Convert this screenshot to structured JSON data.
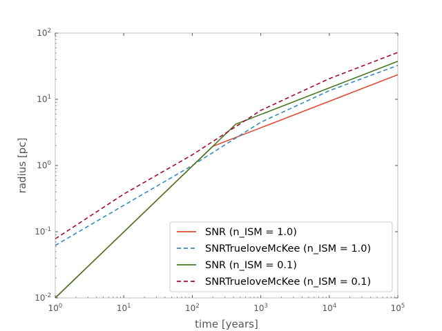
{
  "chart_data": {
    "type": "line",
    "xscale": "log",
    "yscale": "log",
    "xlabel": "time [years]",
    "ylabel": "radius [pc]",
    "xlim": [
      1,
      100000
    ],
    "ylim": [
      0.01,
      100
    ],
    "x_ticks": [
      {
        "base": "10",
        "exp": "0"
      },
      {
        "base": "10",
        "exp": "1"
      },
      {
        "base": "10",
        "exp": "2"
      },
      {
        "base": "10",
        "exp": "3"
      },
      {
        "base": "10",
        "exp": "4"
      },
      {
        "base": "10",
        "exp": "5"
      }
    ],
    "y_ticks": [
      {
        "base": "10",
        "exp": "-2"
      },
      {
        "base": "10",
        "exp": "-1"
      },
      {
        "base": "10",
        "exp": "0"
      },
      {
        "base": "10",
        "exp": "1"
      },
      {
        "base": "10",
        "exp": "2"
      }
    ],
    "grid": false,
    "legend_position": "lower-right",
    "series": [
      {
        "name": "SNR (n_ISM = 1.0)",
        "color": "#e24a33",
        "dash": "solid",
        "x": [
          1,
          200,
          100000
        ],
        "y": [
          0.01,
          1.95,
          23.5
        ]
      },
      {
        "name": "SNRTrueloveMcKee (n_ISM = 1.0)",
        "color": "#348abd",
        "dash": "dashed",
        "x": [
          1,
          10,
          100,
          1000,
          10000,
          100000
        ],
        "y": [
          0.062,
          0.25,
          1.0,
          4.5,
          13.5,
          32.5
        ]
      },
      {
        "name": "SNR (n_ISM = 0.1)",
        "color": "#467821",
        "dash": "solid",
        "x": [
          1,
          430,
          100000
        ],
        "y": [
          0.01,
          4.2,
          37.5
        ]
      },
      {
        "name": "SNRTrueloveMcKee (n_ISM = 0.1)",
        "color": "#a60628",
        "dash": "dashed",
        "x": [
          1,
          10,
          100,
          1000,
          10000,
          100000
        ],
        "y": [
          0.078,
          0.37,
          1.45,
          6.8,
          20.5,
          51.0
        ]
      }
    ]
  }
}
